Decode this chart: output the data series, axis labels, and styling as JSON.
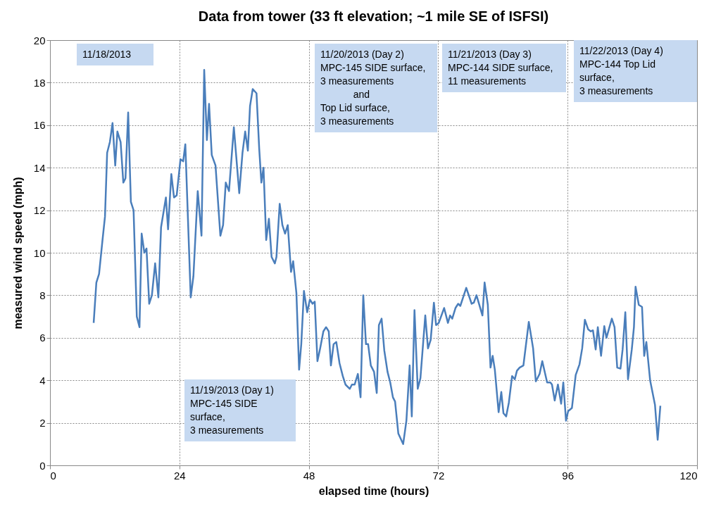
{
  "chart_data": {
    "type": "line",
    "title": "Data from tower (33 ft elevation; ~1 mile SE of ISFSI)",
    "xlabel": "elapsed time (hours)",
    "ylabel": "measured wind speed  (mph)",
    "x": [
      8.1,
      8.6,
      9.1,
      9.7,
      10.2,
      10.6,
      11.1,
      11.6,
      12.1,
      12.5,
      13.1,
      13.6,
      14.0,
      14.5,
      15.0,
      15.5,
      16.1,
      16.6,
      17.0,
      17.5,
      17.9,
      18.4,
      18.9,
      19.5,
      20.1,
      20.6,
      21.5,
      21.9,
      22.5,
      23.0,
      23.5,
      24.2,
      24.7,
      25.1,
      26.1,
      26.6,
      27.4,
      28.1,
      28.6,
      29.1,
      29.5,
      30.0,
      30.7,
      31.6,
      32.1,
      32.6,
      33.2,
      34.1,
      35.1,
      35.7,
      36.2,
      36.7,
      37.1,
      37.6,
      38.3,
      38.8,
      39.2,
      39.6,
      40.1,
      40.6,
      41.1,
      41.7,
      42.0,
      42.6,
      43.1,
      43.6,
      44.1,
      44.7,
      45.1,
      45.7,
      46.2,
      46.6,
      47.1,
      47.7,
      48.2,
      48.7,
      49.1,
      49.6,
      50.1,
      50.7,
      51.2,
      51.7,
      52.1,
      52.6,
      53.1,
      53.7,
      54.3,
      54.8,
      55.6,
      56.0,
      56.5,
      57.1,
      57.6,
      58.1,
      58.6,
      59.0,
      59.5,
      60.1,
      60.6,
      61.0,
      61.5,
      62.0,
      62.6,
      63.1,
      63.6,
      64.0,
      64.6,
      65.5,
      66.1,
      66.7,
      67.1,
      67.6,
      68.2,
      68.7,
      69.6,
      70.1,
      70.6,
      71.2,
      71.6,
      72.1,
      73.1,
      73.8,
      74.2,
      74.6,
      75.2,
      75.7,
      76.1,
      77.2,
      78.2,
      78.6,
      79.1,
      80.2,
      80.6,
      81.2,
      81.7,
      82.1,
      82.5,
      83.2,
      83.7,
      84.1,
      84.6,
      85.1,
      85.7,
      86.2,
      86.6,
      87.1,
      87.8,
      88.8,
      89.6,
      90.1,
      90.8,
      91.3,
      92.2,
      92.8,
      93.1,
      93.6,
      94.2,
      94.8,
      95.2,
      95.7,
      96.1,
      96.8,
      97.5,
      98.2,
      98.7,
      99.2,
      99.8,
      100.3,
      100.7,
      101.2,
      101.6,
      102.2,
      102.8,
      103.2,
      104.2,
      104.7,
      105.2,
      105.8,
      106.2,
      106.7,
      107.2,
      107.9,
      108.3,
      108.6,
      109.2,
      109.8,
      110.2,
      110.6,
      111.3,
      112.2,
      112.7,
      113.2
    ],
    "series": [
      {
        "color": "#4a7ebb",
        "values": [
          6.7,
          8.6,
          9.0,
          10.5,
          11.7,
          14.7,
          15.2,
          16.1,
          14.1,
          15.7,
          15.2,
          13.3,
          13.5,
          16.6,
          12.4,
          12.0,
          7.0,
          6.5,
          10.9,
          10.0,
          10.2,
          7.6,
          8.0,
          9.5,
          7.9,
          11.2,
          12.6,
          11.1,
          13.7,
          12.6,
          12.7,
          14.4,
          14.3,
          15.1,
          7.9,
          8.9,
          12.9,
          10.8,
          18.6,
          15.3,
          17.0,
          14.6,
          14.1,
          10.8,
          11.3,
          13.3,
          12.9,
          15.9,
          12.8,
          14.7,
          15.7,
          14.8,
          16.9,
          17.7,
          17.5,
          14.9,
          13.3,
          14.0,
          10.6,
          11.6,
          9.8,
          9.5,
          9.8,
          12.3,
          11.3,
          10.9,
          11.3,
          9.1,
          9.6,
          8.1,
          4.5,
          5.7,
          8.2,
          7.2,
          7.8,
          7.6,
          7.7,
          4.9,
          5.5,
          6.3,
          6.5,
          6.3,
          4.7,
          5.7,
          5.8,
          4.8,
          4.2,
          3.8,
          3.6,
          3.8,
          3.8,
          4.3,
          3.2,
          8.0,
          5.7,
          5.7,
          4.7,
          4.4,
          3.4,
          6.6,
          6.9,
          5.4,
          4.4,
          3.9,
          3.2,
          3.0,
          1.5,
          1.0,
          2.1,
          4.7,
          2.3,
          7.3,
          3.6,
          4.1,
          7.05,
          5.5,
          5.9,
          7.65,
          6.6,
          6.7,
          7.4,
          6.7,
          7.05,
          6.9,
          7.4,
          7.6,
          7.5,
          8.35,
          7.6,
          7.65,
          8.0,
          7.05,
          8.6,
          7.55,
          4.6,
          5.15,
          4.5,
          2.5,
          3.45,
          2.45,
          2.3,
          2.95,
          4.2,
          4.05,
          4.45,
          4.6,
          4.7,
          6.75,
          5.5,
          3.95,
          4.3,
          4.9,
          3.9,
          3.9,
          3.8,
          3.05,
          3.8,
          2.9,
          3.9,
          2.1,
          2.55,
          2.7,
          4.25,
          4.75,
          5.5,
          6.85,
          6.4,
          6.3,
          6.35,
          5.45,
          6.5,
          5.15,
          6.55,
          6.0,
          6.9,
          6.5,
          4.6,
          4.55,
          5.45,
          7.2,
          4.05,
          5.45,
          6.5,
          8.4,
          7.55,
          7.45,
          5.15,
          5.8,
          4.0,
          2.85,
          1.2,
          2.8
        ]
      }
    ],
    "xlim": [
      0,
      120
    ],
    "xticks": [
      0,
      24,
      48,
      72,
      96,
      120
    ],
    "ylim": [
      0,
      20
    ],
    "yticks": [
      0,
      2,
      4,
      6,
      8,
      10,
      12,
      14,
      16,
      18,
      20
    ],
    "grid": true,
    "marker": "none",
    "annotations": [
      "11/18/2013",
      "11/19/2013 (Day 1)\nMPC-145 SIDE\nsurface,\n3 measurements",
      "11/20/2013 (Day 2)\nMPC-145 SIDE surface,\n3 measurements\n            and\nTop Lid surface,\n3 measurements",
      "11/21/2013 (Day 3)\nMPC-144 SIDE surface,\n11 measurements",
      "11/22/2013 (Day 4)\nMPC-144 Top Lid\nsurface,\n3 measurements"
    ]
  }
}
